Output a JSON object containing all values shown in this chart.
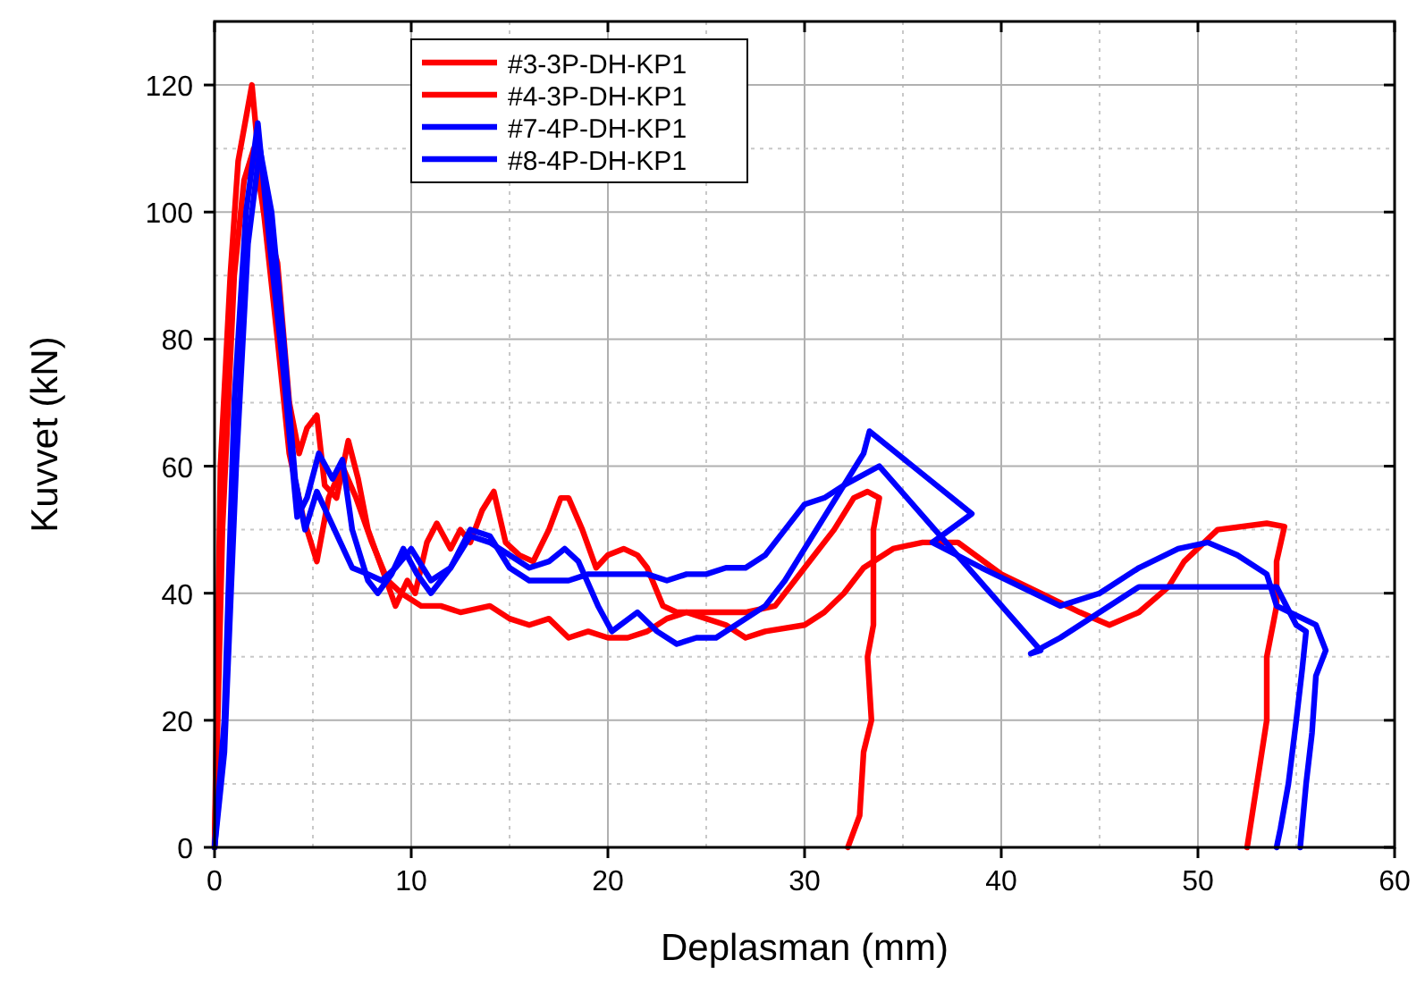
{
  "chart_data": {
    "type": "line",
    "xlabel": "Deplasman (mm)",
    "ylabel": "Kuvvet (kN)",
    "xlim": [
      0,
      60
    ],
    "xticks": [
      0,
      10,
      20,
      30,
      40,
      50,
      60
    ],
    "ylim": [
      0,
      130
    ],
    "yticks": [
      0,
      20,
      40,
      60,
      80,
      100,
      120
    ],
    "grid": true,
    "legend": "top left",
    "marker": "none",
    "line_style": "solid",
    "series": [
      {
        "name": "#3-3P-DH-KP1",
        "color": "#ff0000",
        "x": [
          0,
          0.3,
          0.8,
          1.2,
          1.9,
          2.5,
          3.2,
          3.8,
          4.3,
          4.7,
          5.2,
          5.6,
          6.2,
          6.8,
          7.3,
          7.8,
          8.5,
          9.2,
          9.8,
          10.2,
          10.8,
          11.3,
          12,
          12.5,
          13,
          13.6,
          14.2,
          14.8,
          15.5,
          16.2,
          17,
          17.6,
          18,
          18.7,
          19.4,
          20,
          20.8,
          21.5,
          22,
          22.8,
          23.5,
          25,
          27,
          28.5,
          29.5,
          30.5,
          31.5,
          32.5,
          33.2,
          33.8,
          33.5,
          33.5,
          33.2,
          33.4,
          33,
          32.8,
          32.2
        ],
        "values": [
          0,
          60,
          90,
          108,
          120,
          100,
          92,
          70,
          62,
          66,
          68,
          57,
          55,
          64,
          58,
          50,
          44,
          38,
          42,
          40,
          48,
          51,
          47,
          50,
          48,
          53,
          56,
          48,
          46,
          45,
          50,
          55,
          55,
          50,
          44,
          46,
          47,
          46,
          44,
          38,
          37,
          37,
          37,
          38,
          42,
          46,
          50,
          55,
          56,
          55,
          50,
          35,
          30,
          20,
          15,
          5,
          0
        ]
      },
      {
        "name": "#4-3P-DH-KP1",
        "color": "#ff0000",
        "x": [
          0,
          0.4,
          1,
          1.5,
          2,
          2.5,
          3.2,
          3.8,
          4.5,
          5.2,
          5.8,
          6.5,
          7.2,
          8,
          8.8,
          9.5,
          10.5,
          11.5,
          12.5,
          14,
          15,
          16,
          17,
          18,
          19,
          20,
          21,
          22,
          23,
          24,
          25,
          26,
          27,
          28,
          30,
          31,
          32,
          33,
          34.5,
          36,
          37.8,
          40,
          42,
          44,
          45.5,
          47,
          48.5,
          49.3,
          51,
          53.5,
          54.4,
          54,
          54,
          53.5,
          53.5,
          53,
          52.5
        ],
        "values": [
          0,
          50,
          90,
          105,
          110,
          100,
          80,
          62,
          52,
          45,
          55,
          60,
          55,
          48,
          42,
          40,
          38,
          38,
          37,
          38,
          36,
          35,
          36,
          33,
          34,
          33,
          33,
          34,
          36,
          37,
          36,
          35,
          33,
          34,
          35,
          37,
          40,
          44,
          47,
          48,
          48,
          43,
          40,
          37,
          35,
          37,
          41,
          45,
          50,
          51,
          50.5,
          45,
          38,
          30,
          20,
          10,
          0
        ]
      },
      {
        "name": "#7-4P-DH-KP1",
        "color": "#0000ff",
        "x": [
          0,
          0.5,
          1,
          1.6,
          2.2,
          2.8,
          3.5,
          4.2,
          4.7,
          5.3,
          6,
          6.5,
          7,
          7.8,
          8.3,
          9,
          9.6,
          10.3,
          11,
          12,
          13,
          14,
          15,
          16,
          17,
          17.8,
          18.5,
          19.5,
          20.2,
          21.5,
          22.5,
          23.5,
          24.5,
          25.5,
          26.5,
          28,
          29,
          30,
          31,
          32,
          33,
          33.3,
          38.5,
          36.5,
          39,
          41,
          43,
          45,
          47,
          49,
          50.5,
          52,
          53.5,
          54,
          56,
          56.5,
          56,
          55.8,
          55.5,
          55.2
        ],
        "values": [
          0,
          20,
          70,
          100,
          114,
          95,
          75,
          52,
          55,
          62,
          58,
          61,
          50,
          42,
          40,
          43,
          47,
          43,
          40,
          44,
          49,
          48,
          46,
          44,
          45,
          47,
          45,
          38,
          34,
          37,
          34,
          32,
          33,
          33,
          35,
          38,
          42,
          47,
          52,
          57,
          62,
          65.5,
          52.5,
          48,
          44,
          41,
          38,
          40,
          44,
          47,
          48,
          46,
          43,
          38,
          35,
          31,
          27,
          18,
          10,
          0
        ]
      },
      {
        "name": "#8-4P-DH-KP1",
        "color": "#0000ff",
        "x": [
          0,
          0.5,
          1.1,
          1.7,
          2.3,
          2.9,
          3.5,
          4.1,
          4.6,
          5.2,
          5.8,
          6.4,
          7,
          7.8,
          8.5,
          9.2,
          10,
          11,
          12,
          13,
          14,
          15,
          16,
          17,
          18,
          19,
          20,
          21,
          22,
          23,
          24,
          25,
          26,
          27,
          28,
          29,
          30,
          31,
          32,
          33.8,
          42,
          41.5,
          43,
          45,
          47,
          50,
          54,
          54.5,
          55,
          55.5,
          55.3,
          55,
          54.6,
          54.2,
          54
        ],
        "values": [
          0,
          15,
          60,
          95,
          110,
          100,
          80,
          58,
          50,
          56,
          52,
          48,
          44,
          43,
          42,
          44,
          47,
          42,
          44,
          50,
          49,
          44,
          42,
          42,
          42,
          43,
          43,
          43,
          43,
          42,
          43,
          43,
          44,
          44,
          46,
          50,
          54,
          55,
          57,
          60,
          31,
          30.5,
          33,
          37,
          41,
          41,
          41,
          38,
          35,
          34,
          28,
          20,
          10,
          3,
          0
        ]
      }
    ]
  }
}
